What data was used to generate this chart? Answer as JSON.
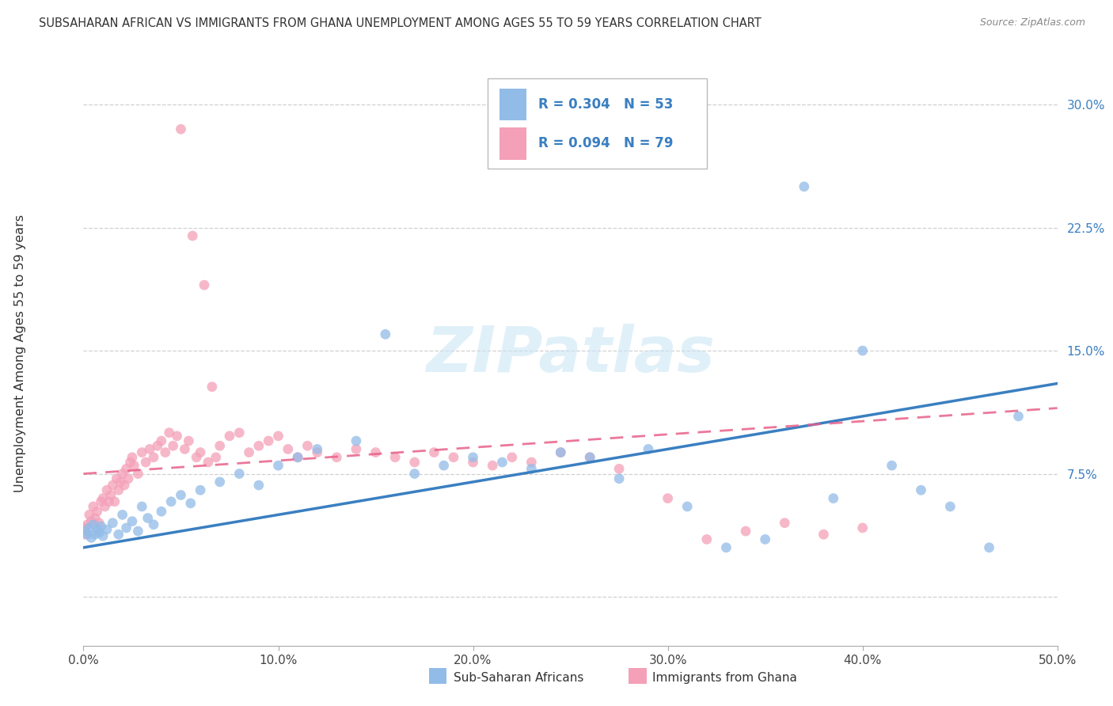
{
  "title": "SUBSAHARAN AFRICAN VS IMMIGRANTS FROM GHANA UNEMPLOYMENT AMONG AGES 55 TO 59 YEARS CORRELATION CHART",
  "source": "Source: ZipAtlas.com",
  "ylabel": "Unemployment Among Ages 55 to 59 years",
  "xlim": [
    0.0,
    0.5
  ],
  "ylim": [
    -0.03,
    0.325
  ],
  "xtick_vals": [
    0.0,
    0.1,
    0.2,
    0.3,
    0.4,
    0.5
  ],
  "xtick_labels": [
    "0.0%",
    "10.0%",
    "20.0%",
    "30.0%",
    "40.0%",
    "50.0%"
  ],
  "ytick_vals": [
    0.0,
    0.075,
    0.15,
    0.225,
    0.3
  ],
  "ytick_labels": [
    "",
    "7.5%",
    "15.0%",
    "22.5%",
    "30.0%"
  ],
  "blue_R": 0.304,
  "blue_N": 53,
  "pink_R": 0.094,
  "pink_N": 79,
  "blue_color": "#92bce8",
  "pink_color": "#f4a0b8",
  "blue_line_color": "#3a7fc1",
  "pink_line_color": "#e8608a",
  "legend_label_blue": "Sub-Saharan Africans",
  "legend_label_pink": "Immigrants from Ghana",
  "watermark": "ZIPatlas",
  "grid_color": "#d0d0d0",
  "background_color": "#ffffff",
  "blue_scatter_x": [
    0.001,
    0.002,
    0.003,
    0.004,
    0.005,
    0.006,
    0.007,
    0.008,
    0.009,
    0.01,
    0.012,
    0.015,
    0.018,
    0.02,
    0.022,
    0.025,
    0.028,
    0.03,
    0.033,
    0.036,
    0.04,
    0.045,
    0.05,
    0.055,
    0.06,
    0.07,
    0.08,
    0.09,
    0.1,
    0.11,
    0.12,
    0.14,
    0.155,
    0.17,
    0.185,
    0.2,
    0.215,
    0.23,
    0.245,
    0.26,
    0.275,
    0.29,
    0.31,
    0.33,
    0.35,
    0.37,
    0.385,
    0.4,
    0.415,
    0.43,
    0.445,
    0.465,
    0.48
  ],
  "blue_scatter_y": [
    0.04,
    0.038,
    0.042,
    0.036,
    0.044,
    0.038,
    0.041,
    0.039,
    0.043,
    0.037,
    0.041,
    0.045,
    0.038,
    0.05,
    0.042,
    0.046,
    0.04,
    0.055,
    0.048,
    0.044,
    0.052,
    0.058,
    0.062,
    0.057,
    0.065,
    0.07,
    0.075,
    0.068,
    0.08,
    0.085,
    0.09,
    0.095,
    0.16,
    0.075,
    0.08,
    0.085,
    0.082,
    0.078,
    0.088,
    0.085,
    0.072,
    0.09,
    0.055,
    0.03,
    0.035,
    0.25,
    0.06,
    0.15,
    0.08,
    0.065,
    0.055,
    0.03,
    0.11
  ],
  "pink_scatter_x": [
    0.0,
    0.001,
    0.002,
    0.003,
    0.004,
    0.005,
    0.006,
    0.007,
    0.008,
    0.009,
    0.01,
    0.011,
    0.012,
    0.013,
    0.014,
    0.015,
    0.016,
    0.017,
    0.018,
    0.019,
    0.02,
    0.021,
    0.022,
    0.023,
    0.024,
    0.025,
    0.026,
    0.028,
    0.03,
    0.032,
    0.034,
    0.036,
    0.038,
    0.04,
    0.042,
    0.044,
    0.046,
    0.048,
    0.05,
    0.052,
    0.054,
    0.056,
    0.058,
    0.06,
    0.062,
    0.064,
    0.066,
    0.068,
    0.07,
    0.075,
    0.08,
    0.085,
    0.09,
    0.095,
    0.1,
    0.105,
    0.11,
    0.115,
    0.12,
    0.13,
    0.14,
    0.15,
    0.16,
    0.17,
    0.18,
    0.19,
    0.2,
    0.21,
    0.22,
    0.23,
    0.245,
    0.26,
    0.275,
    0.3,
    0.32,
    0.34,
    0.36,
    0.38,
    0.4
  ],
  "pink_scatter_y": [
    0.042,
    0.038,
    0.044,
    0.05,
    0.046,
    0.055,
    0.048,
    0.052,
    0.045,
    0.058,
    0.06,
    0.055,
    0.065,
    0.058,
    0.062,
    0.068,
    0.058,
    0.072,
    0.065,
    0.07,
    0.075,
    0.068,
    0.078,
    0.072,
    0.082,
    0.085,
    0.08,
    0.075,
    0.088,
    0.082,
    0.09,
    0.085,
    0.092,
    0.095,
    0.088,
    0.1,
    0.092,
    0.098,
    0.285,
    0.09,
    0.095,
    0.22,
    0.085,
    0.088,
    0.19,
    0.082,
    0.128,
    0.085,
    0.092,
    0.098,
    0.1,
    0.088,
    0.092,
    0.095,
    0.098,
    0.09,
    0.085,
    0.092,
    0.088,
    0.085,
    0.09,
    0.088,
    0.085,
    0.082,
    0.088,
    0.085,
    0.082,
    0.08,
    0.085,
    0.082,
    0.088,
    0.085,
    0.078,
    0.06,
    0.035,
    0.04,
    0.045,
    0.038,
    0.042
  ]
}
